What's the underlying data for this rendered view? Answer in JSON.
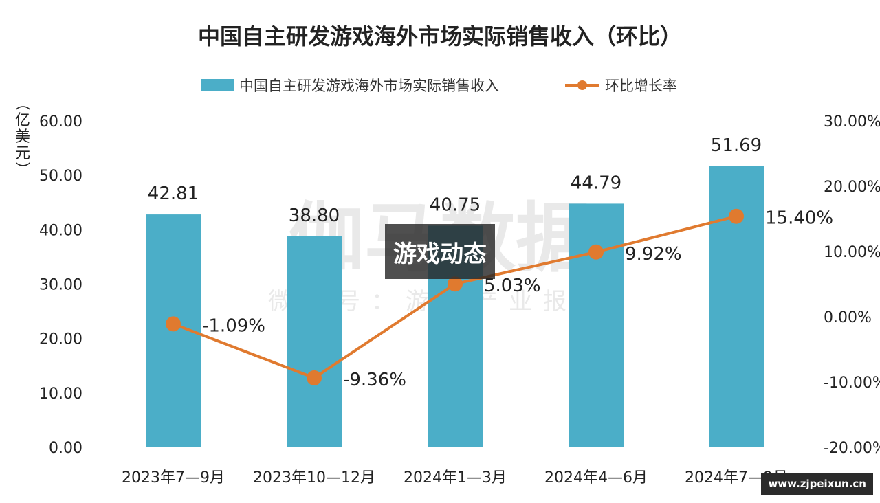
{
  "chart_data": {
    "type": "bar",
    "title": "中国自主研发游戏海外市场实际销售收入（环比）",
    "categories": [
      "2023年7—9月",
      "2023年10—12月",
      "2024年1—3月",
      "2024年4—6月",
      "2024年7—9月"
    ],
    "series": [
      {
        "name": "中国自主研发游戏海外市场实际销售收入",
        "type": "bar",
        "axis": "left",
        "values": [
          42.81,
          38.8,
          40.75,
          44.79,
          51.69
        ],
        "labels": [
          "42.81",
          "38.80",
          "40.75",
          "44.79",
          "51.69"
        ],
        "color": "#4BAEC8"
      },
      {
        "name": "环比增长率",
        "type": "line",
        "axis": "right",
        "values": [
          -1.09,
          -9.36,
          5.03,
          9.92,
          15.4
        ],
        "labels": [
          "-1.09%",
          "-9.36%",
          "5.03%",
          "9.92%",
          "15.40%"
        ],
        "color": "#E07A2F"
      }
    ],
    "ylabel": "（亿美元）",
    "ylim": [
      0,
      60
    ],
    "y_ticks": [
      "0.00",
      "10.00",
      "20.00",
      "30.00",
      "40.00",
      "50.00",
      "60.00"
    ],
    "y2lim": [
      -20,
      30
    ],
    "y2_ticks": [
      "-20.00%",
      "-10.00%",
      "0.00%",
      "10.00%",
      "20.00%",
      "30.00%"
    ],
    "legend_position": "top",
    "grid": false
  },
  "watermark": {
    "main": "伽马数据",
    "sub": "微信号：游戏产业报告"
  },
  "overlay": {
    "badge": "游戏动态",
    "site": "www.zjpeixun.cn"
  }
}
